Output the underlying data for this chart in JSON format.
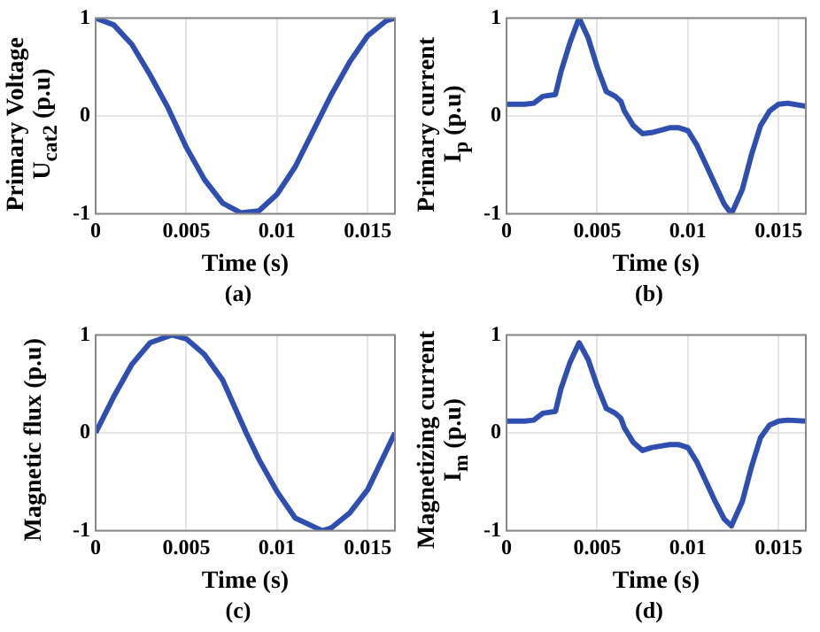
{
  "chart_data": [
    {
      "type": "line",
      "xlabel": "Time (s)",
      "ylabel": "Primary Voltage\nU$_{cat2}$ (p.u)",
      "annotations": [
        "(a)"
      ],
      "xlim": [
        0,
        0.0165
      ],
      "xticks": [
        0,
        0.005,
        0.01,
        0.015
      ],
      "ylim": [
        -1,
        1
      ],
      "yticks": [
        -1,
        0,
        1
      ],
      "grid": true,
      "series": [
        {
          "color": "#2f4fb0",
          "x": [
            0,
            0.001,
            0.002,
            0.003,
            0.004,
            0.005,
            0.006,
            0.007,
            0.008,
            0.009,
            0.01,
            0.011,
            0.012,
            0.013,
            0.014,
            0.015,
            0.016,
            0.0165
          ],
          "values": [
            1,
            0.93,
            0.73,
            0.42,
            0.08,
            -0.32,
            -0.65,
            -0.89,
            -0.99,
            -0.97,
            -0.8,
            -0.52,
            -0.15,
            0.22,
            0.55,
            0.82,
            0.97,
            1
          ]
        }
      ]
    },
    {
      "type": "line",
      "xlabel": "Time (s)",
      "ylabel": "Primary current\nI$_{p}$ (p.u)",
      "annotations": [
        "(b)"
      ],
      "xlim": [
        0,
        0.0165
      ],
      "xticks": [
        0,
        0.005,
        0.01,
        0.015
      ],
      "ylim": [
        -1,
        1
      ],
      "yticks": [
        -1,
        0,
        1
      ],
      "grid": true,
      "series": [
        {
          "color": "#2f4fb0",
          "x": [
            0,
            0.001,
            0.0015,
            0.002,
            0.0027,
            0.003,
            0.0035,
            0.004,
            0.0045,
            0.005,
            0.0055,
            0.006,
            0.0063,
            0.0065,
            0.007,
            0.0075,
            0.008,
            0.009,
            0.0095,
            0.01,
            0.0105,
            0.011,
            0.0115,
            0.012,
            0.0124,
            0.013,
            0.0135,
            0.014,
            0.0145,
            0.015,
            0.0155,
            0.0165
          ],
          "values": [
            0.12,
            0.12,
            0.13,
            0.2,
            0.22,
            0.45,
            0.75,
            1,
            0.8,
            0.5,
            0.25,
            0.2,
            0.15,
            0.05,
            -0.1,
            -0.18,
            -0.17,
            -0.12,
            -0.12,
            -0.15,
            -0.3,
            -0.5,
            -0.7,
            -0.9,
            -1,
            -0.75,
            -0.4,
            -0.1,
            0.05,
            0.12,
            0.13,
            0.1
          ]
        }
      ]
    },
    {
      "type": "line",
      "xlabel": "Time (s)",
      "ylabel": "Magnetic flux (p.u)",
      "annotations": [
        "(c)"
      ],
      "xlim": [
        0,
        0.0165
      ],
      "xticks": [
        0,
        0.005,
        0.01,
        0.015
      ],
      "ylim": [
        -1,
        1
      ],
      "yticks": [
        -1,
        0,
        1
      ],
      "grid": true,
      "series": [
        {
          "color": "#2f4fb0",
          "x": [
            0,
            0.001,
            0.002,
            0.003,
            0.0042,
            0.005,
            0.006,
            0.007,
            0.0083,
            0.009,
            0.01,
            0.011,
            0.0125,
            0.013,
            0.014,
            0.015,
            0.0165
          ],
          "values": [
            0,
            0.37,
            0.7,
            0.92,
            1,
            0.96,
            0.8,
            0.54,
            0,
            -0.27,
            -0.6,
            -0.87,
            -1,
            -0.97,
            -0.82,
            -0.58,
            0
          ]
        }
      ]
    },
    {
      "type": "line",
      "xlabel": "Time (s)",
      "ylabel": "Magnetizing current\nI$_{m}$ (p.u)",
      "annotations": [
        "(d)"
      ],
      "xlim": [
        0,
        0.0165
      ],
      "xticks": [
        0,
        0.005,
        0.01,
        0.015
      ],
      "ylim": [
        -1,
        1
      ],
      "yticks": [
        -1,
        0,
        1
      ],
      "grid": true,
      "series": [
        {
          "color": "#2f4fb0",
          "x": [
            0,
            0.001,
            0.0015,
            0.002,
            0.0027,
            0.003,
            0.0035,
            0.004,
            0.0045,
            0.005,
            0.0055,
            0.006,
            0.0063,
            0.0065,
            0.007,
            0.0075,
            0.008,
            0.009,
            0.0095,
            0.01,
            0.0105,
            0.011,
            0.0115,
            0.012,
            0.0124,
            0.013,
            0.0135,
            0.014,
            0.0145,
            0.015,
            0.0155,
            0.0165
          ],
          "values": [
            0.12,
            0.12,
            0.13,
            0.2,
            0.22,
            0.45,
            0.72,
            0.92,
            0.75,
            0.48,
            0.25,
            0.2,
            0.15,
            0.05,
            -0.1,
            -0.18,
            -0.15,
            -0.12,
            -0.12,
            -0.15,
            -0.3,
            -0.5,
            -0.7,
            -0.88,
            -0.95,
            -0.7,
            -0.35,
            -0.05,
            0.08,
            0.12,
            0.13,
            0.12
          ]
        }
      ]
    }
  ]
}
